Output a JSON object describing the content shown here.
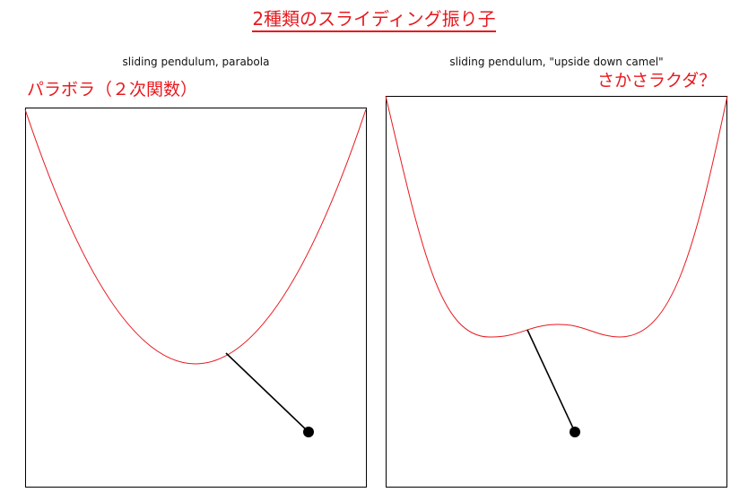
{
  "title": "2種類のスライディング振り子",
  "panels": [
    {
      "caption": "sliding pendulum, parabola",
      "note": "パラボラ（２次関数）",
      "track_color": "#e8191f"
    },
    {
      "caption": "sliding pendulum, \"upside down camel\"",
      "note": "さかさラクダ？",
      "track_color": "#e8191f"
    }
  ],
  "colors": {
    "annotation": "#e8191f",
    "frame": "#000000",
    "rod": "#000000",
    "bob": "#000000"
  }
}
